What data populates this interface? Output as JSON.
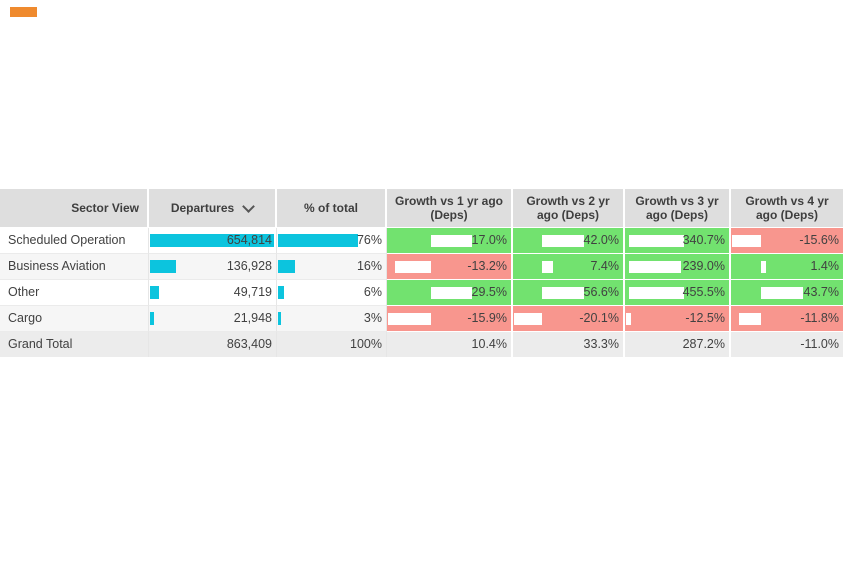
{
  "marker": {
    "color": "#ef8a2e"
  },
  "colors": {
    "positive": "#72e26f",
    "negative": "#f8968e",
    "bar_cyan": "#0cc4de",
    "header_bg": "#dedede",
    "total_bg": "#ececec",
    "alt_row_bg": "#f6f6f6",
    "text": "#414141",
    "header_text": "#3e3e3e"
  },
  "table": {
    "header": {
      "sector": "Sector View",
      "departures": "Departures",
      "sort_icon": "chevron-down",
      "pct": "% of total",
      "growth": [
        "Growth vs 1 yr ago (Deps)",
        "Growth vs 2 yr ago (Deps)",
        "Growth vs 3 yr ago (Deps)",
        "Growth vs 4 yr ago (Deps)"
      ]
    },
    "rows": [
      {
        "sector": "Scheduled Operation",
        "departures": 654814,
        "departures_label": "654,814",
        "pct": 76,
        "pct_label": "76%",
        "growth": [
          17.0,
          42.0,
          340.7,
          -15.6
        ],
        "growth_labels": [
          "17.0%",
          "42.0%",
          "340.7%",
          "-15.6%"
        ]
      },
      {
        "sector": "Business Aviation",
        "departures": 136928,
        "departures_label": "136,928",
        "pct": 16,
        "pct_label": "16%",
        "growth": [
          -13.2,
          7.4,
          239.0,
          1.4
        ],
        "growth_labels": [
          "-13.2%",
          "7.4%",
          "239.0%",
          "1.4%"
        ]
      },
      {
        "sector": "Other",
        "departures": 49719,
        "departures_label": "49,719",
        "pct": 6,
        "pct_label": "6%",
        "growth": [
          29.5,
          56.6,
          455.5,
          43.7
        ],
        "growth_labels": [
          "29.5%",
          "56.6%",
          "455.5%",
          "43.7%"
        ]
      },
      {
        "sector": "Cargo",
        "departures": 21948,
        "departures_label": "21,948",
        "pct": 3,
        "pct_label": "3%",
        "growth": [
          -15.9,
          -20.1,
          -12.5,
          -11.8
        ],
        "growth_labels": [
          "-15.9%",
          "-20.1%",
          "-12.5%",
          "-11.8%"
        ]
      }
    ],
    "grand_total": {
      "sector": "Grand Total",
      "departures_label": "863,409",
      "pct_label": "100%",
      "growth_labels": [
        "10.4%",
        "33.3%",
        "287.2%",
        "-11.0%"
      ]
    }
  },
  "chart_data": {
    "type": "table",
    "title": "Sector View departures growth table",
    "columns": [
      "Sector View",
      "Departures",
      "% of total",
      "Growth vs 1 yr ago (Deps)",
      "Growth vs 2 yr ago (Deps)",
      "Growth vs 3 yr ago (Deps)",
      "Growth vs 4 yr ago (Deps)"
    ],
    "rows": [
      [
        "Scheduled Operation",
        654814,
        "76%",
        17.0,
        42.0,
        340.7,
        -15.6
      ],
      [
        "Business Aviation",
        136928,
        "16%",
        -13.2,
        7.4,
        239.0,
        1.4
      ],
      [
        "Other",
        49719,
        "6%",
        29.5,
        56.6,
        455.5,
        43.7
      ],
      [
        "Cargo",
        21948,
        "3%",
        -15.9,
        -20.1,
        -12.5,
        -11.8
      ],
      [
        "Grand Total",
        863409,
        "100%",
        10.4,
        33.3,
        287.2,
        -11.0
      ]
    ],
    "notes": "Cyan in-cell bars for Departures and % of total; growth cells green when positive, red when negative, with white diverging bars per column."
  }
}
